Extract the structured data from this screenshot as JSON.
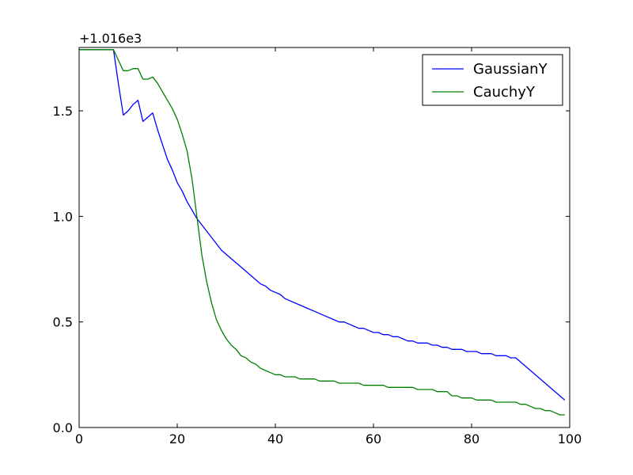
{
  "chart_data": {
    "type": "line",
    "offset_label": "+1.016e3",
    "xlim": [
      0,
      100
    ],
    "ylim": [
      0.0,
      1.8
    ],
    "x_ticks": [
      0,
      20,
      40,
      60,
      80,
      100
    ],
    "x_tick_labels": [
      "0",
      "20",
      "40",
      "60",
      "80",
      "100"
    ],
    "y_ticks": [
      0.0,
      0.5,
      1.0,
      1.5
    ],
    "y_tick_labels": [
      "0.0",
      "0.5",
      "1.0",
      "1.5"
    ],
    "grid": false,
    "legend_position": "top-right",
    "series": [
      {
        "name": "GaussianY",
        "color": "#0000ff",
        "x": [
          0,
          7,
          8,
          9,
          10,
          11,
          12,
          13,
          14,
          15,
          16,
          17,
          18,
          19,
          20,
          21,
          22,
          23,
          24,
          25,
          26,
          27,
          28,
          29,
          30,
          32,
          34,
          36,
          37,
          38,
          39,
          40,
          41,
          42,
          44,
          46,
          48,
          50,
          52,
          53,
          54,
          55,
          56,
          57,
          58,
          59,
          60,
          61,
          62,
          63,
          64,
          65,
          66,
          67,
          68,
          69,
          70,
          71,
          72,
          73,
          74,
          75,
          76,
          77,
          78,
          79,
          80,
          81,
          82,
          83,
          84,
          85,
          86,
          87,
          88,
          89,
          99
        ],
        "values": [
          1.79,
          1.79,
          1.63,
          1.48,
          1.5,
          1.53,
          1.55,
          1.45,
          1.47,
          1.49,
          1.41,
          1.34,
          1.27,
          1.22,
          1.16,
          1.12,
          1.07,
          1.03,
          0.99,
          0.96,
          0.93,
          0.9,
          0.87,
          0.84,
          0.82,
          0.78,
          0.74,
          0.7,
          0.68,
          0.67,
          0.65,
          0.64,
          0.63,
          0.61,
          0.59,
          0.57,
          0.55,
          0.53,
          0.51,
          0.5,
          0.5,
          0.49,
          0.48,
          0.47,
          0.47,
          0.46,
          0.45,
          0.45,
          0.44,
          0.44,
          0.43,
          0.43,
          0.42,
          0.41,
          0.41,
          0.4,
          0.4,
          0.4,
          0.39,
          0.39,
          0.38,
          0.38,
          0.37,
          0.37,
          0.37,
          0.36,
          0.36,
          0.36,
          0.35,
          0.35,
          0.35,
          0.34,
          0.34,
          0.34,
          0.33,
          0.33,
          0.13
        ]
      },
      {
        "name": "CauchyY",
        "color": "#008000",
        "x": [
          0,
          7,
          8,
          9,
          10,
          11,
          12,
          13,
          14,
          15,
          16,
          17,
          18,
          19,
          20,
          21,
          22,
          23,
          24,
          25,
          26,
          27,
          28,
          29,
          30,
          31,
          32,
          33,
          34,
          35,
          36,
          37,
          38,
          39,
          40,
          41,
          42,
          43,
          44,
          45,
          46,
          47,
          48,
          49,
          50,
          51,
          52,
          53,
          54,
          55,
          56,
          57,
          58,
          59,
          60,
          61,
          62,
          63,
          64,
          65,
          66,
          67,
          68,
          69,
          70,
          71,
          72,
          73,
          74,
          75,
          76,
          77,
          78,
          79,
          80,
          81,
          82,
          83,
          84,
          85,
          86,
          87,
          88,
          89,
          90,
          91,
          92,
          93,
          94,
          95,
          96,
          97,
          98,
          99
        ],
        "values": [
          1.79,
          1.79,
          1.74,
          1.69,
          1.69,
          1.7,
          1.7,
          1.65,
          1.65,
          1.66,
          1.63,
          1.59,
          1.55,
          1.51,
          1.46,
          1.39,
          1.31,
          1.18,
          1.0,
          0.82,
          0.69,
          0.59,
          0.51,
          0.46,
          0.42,
          0.39,
          0.37,
          0.34,
          0.33,
          0.31,
          0.3,
          0.28,
          0.27,
          0.26,
          0.25,
          0.25,
          0.24,
          0.24,
          0.24,
          0.23,
          0.23,
          0.23,
          0.23,
          0.22,
          0.22,
          0.22,
          0.22,
          0.21,
          0.21,
          0.21,
          0.21,
          0.21,
          0.2,
          0.2,
          0.2,
          0.2,
          0.2,
          0.19,
          0.19,
          0.19,
          0.19,
          0.19,
          0.19,
          0.18,
          0.18,
          0.18,
          0.18,
          0.17,
          0.17,
          0.17,
          0.15,
          0.15,
          0.14,
          0.14,
          0.14,
          0.13,
          0.13,
          0.13,
          0.13,
          0.12,
          0.12,
          0.12,
          0.12,
          0.12,
          0.11,
          0.11,
          0.1,
          0.09,
          0.09,
          0.08,
          0.08,
          0.07,
          0.06,
          0.06
        ]
      }
    ]
  }
}
